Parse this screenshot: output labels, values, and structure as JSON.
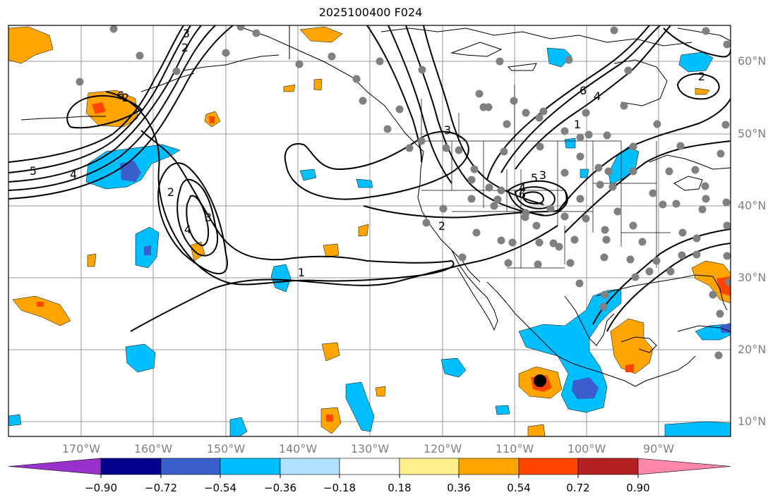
{
  "title": "2025100400 F024",
  "lat_labels": [
    "60°N",
    "50°N",
    "40°N",
    "30°N",
    "20°N",
    "10°N"
  ],
  "lon_labels": [
    "170°W",
    "160°W",
    "150°W",
    "140°W",
    "130°W",
    "120°W",
    "110°W",
    "100°W",
    "90°W"
  ],
  "colorbar": {
    "ticks": [
      "−0.90",
      "−0.72",
      "−0.54",
      "−0.36",
      "−0.18",
      "0.18",
      "0.36",
      "0.54",
      "0.72",
      "0.90"
    ],
    "colors": [
      "#9932cc",
      "#00008b",
      "#3a5fcd",
      "#00bfff",
      "#b0e2ff",
      "#ffffff",
      "#fff08c",
      "#ffa500",
      "#ff4500",
      "#b22222",
      "#ff88aa"
    ]
  },
  "contour_labels": [
    "5",
    "4",
    "3",
    "2",
    "3",
    "4",
    "2",
    "1",
    "2",
    "3",
    "6",
    "4",
    "1",
    "2",
    "3",
    "4",
    "5",
    "6",
    "6",
    "2"
  ],
  "colors": {
    "land_outline": "#000000",
    "grid": "#999999",
    "station": "#808080",
    "storm_center": "#000000",
    "shade_orange": "#ffa500",
    "shade_red": "#ff4500",
    "shade_cyan": "#00bfff",
    "shade_blue": "#3a5fcd"
  }
}
